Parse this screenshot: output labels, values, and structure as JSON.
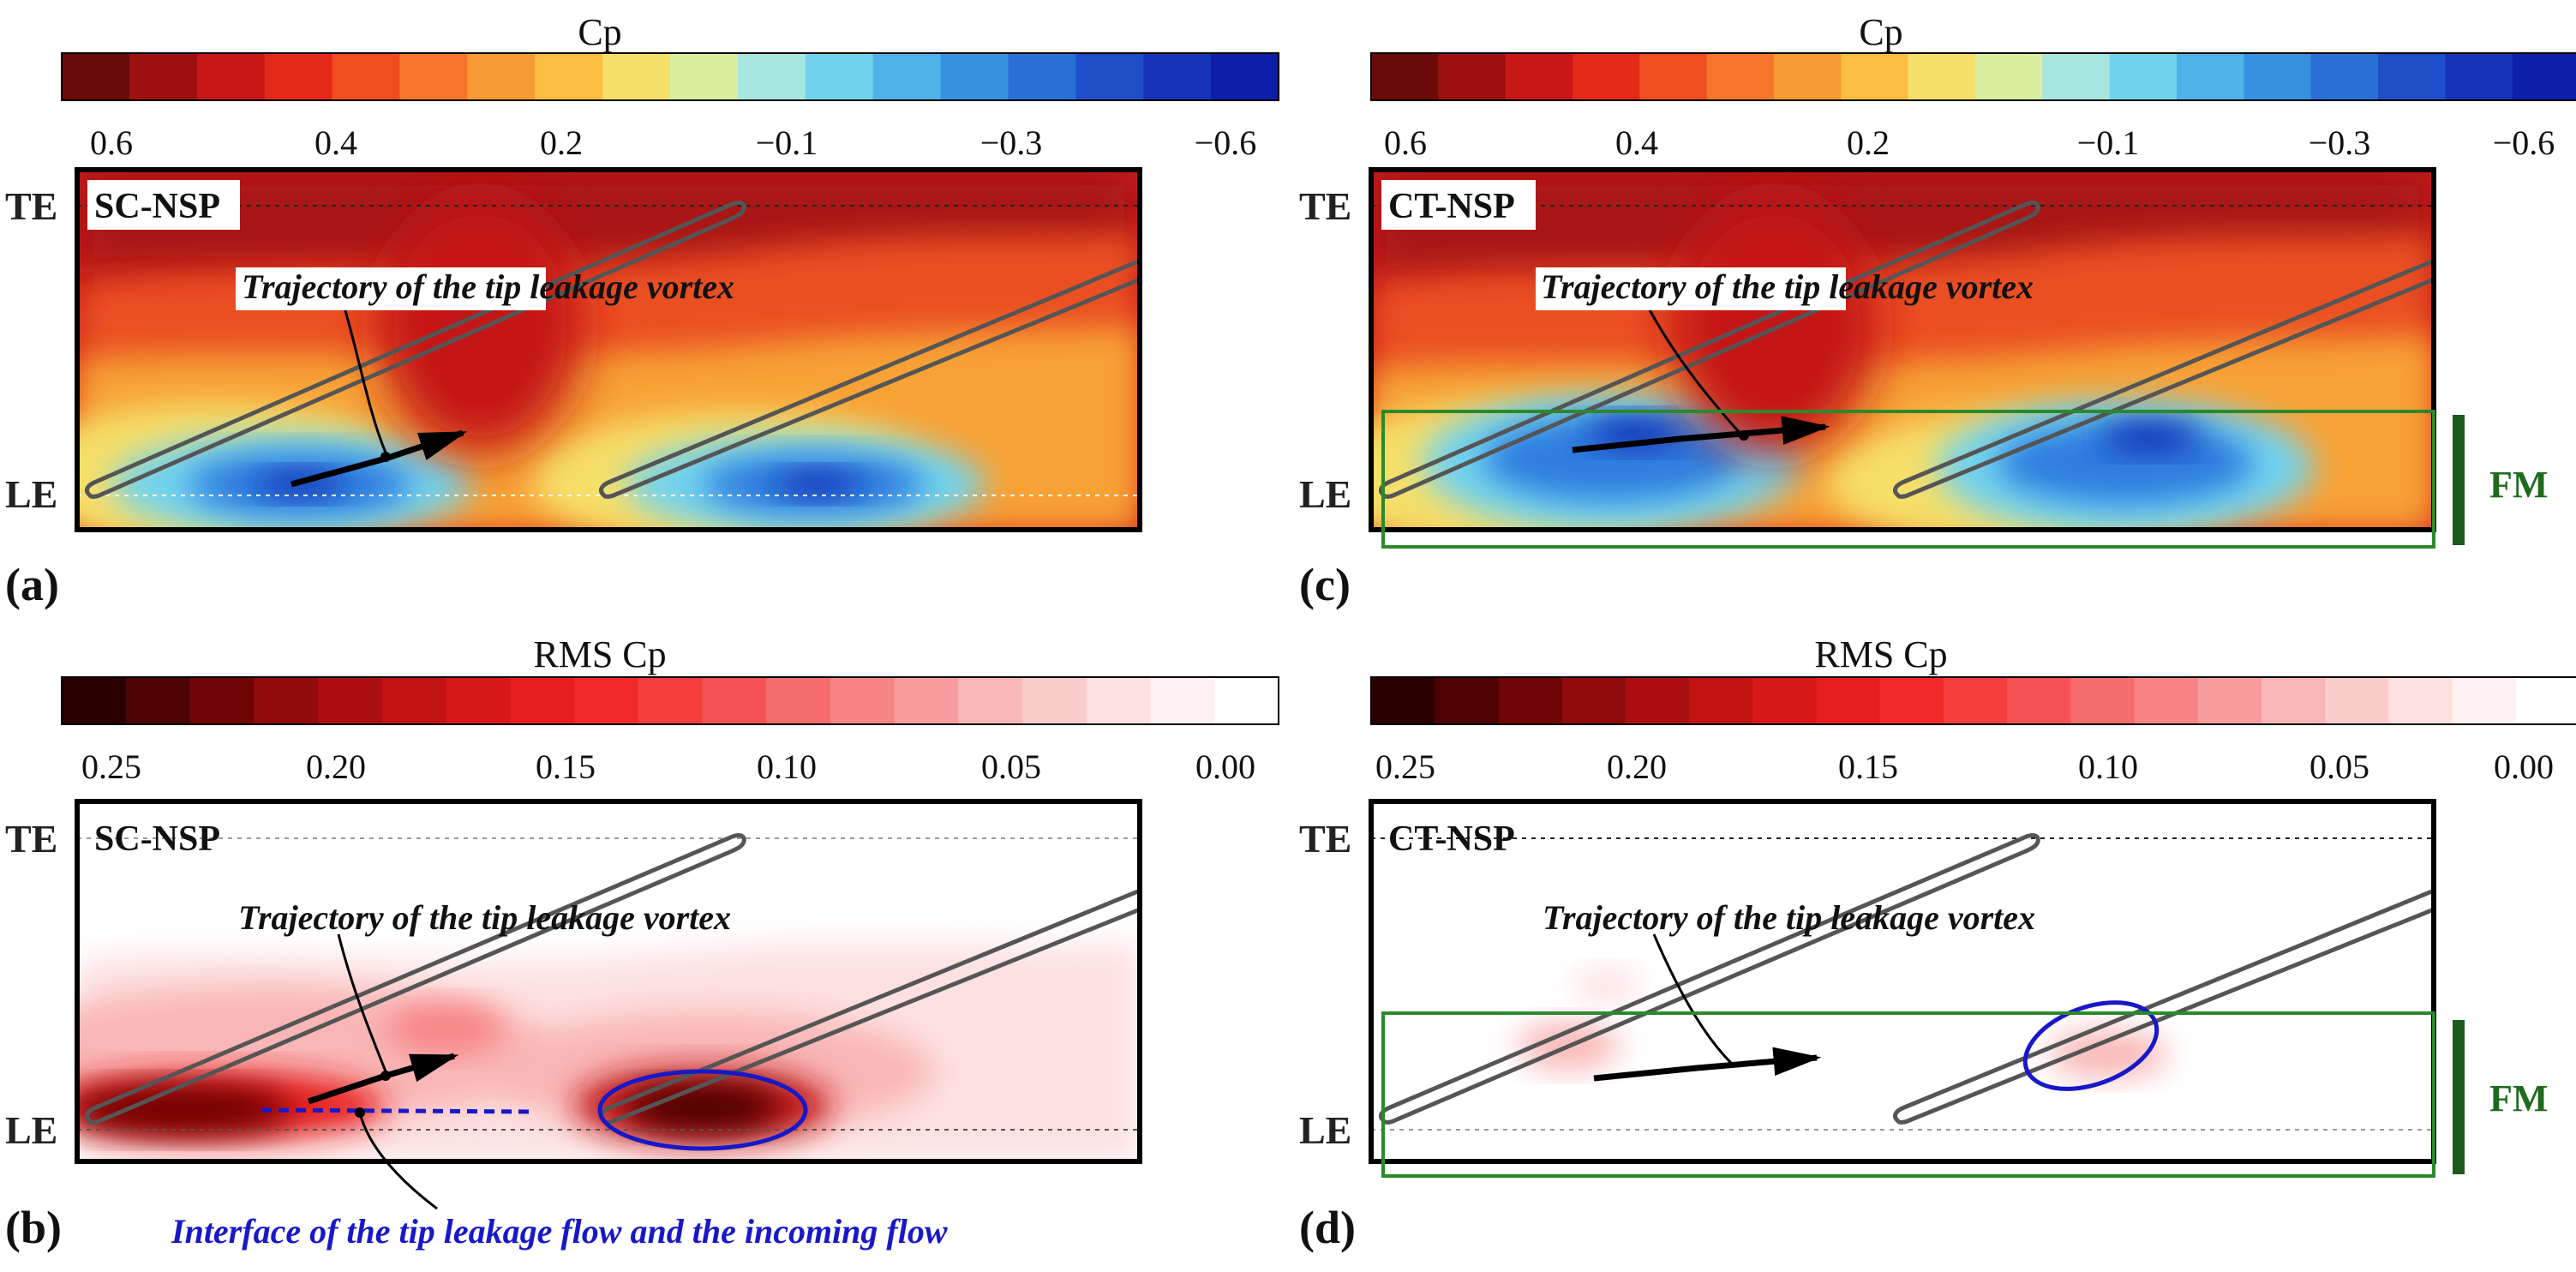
{
  "figure": {
    "cp_colorbar": {
      "title": "Cp",
      "colors": [
        "#6b0a0a",
        "#9c1010",
        "#c81717",
        "#e32a19",
        "#f04e20",
        "#f5762a",
        "#f89a33",
        "#fbbd42",
        "#f6df69",
        "#d9ee9e",
        "#a8e6e0",
        "#72d3ee",
        "#4fb3ea",
        "#3790e0",
        "#2a6fd6",
        "#1f4fc8",
        "#1634b7",
        "#0d1ea8"
      ],
      "ticks": [
        "0.6",
        "0.4",
        "0.2",
        "−0.1",
        "−0.3",
        "−0.6"
      ]
    },
    "rms_colorbar": {
      "title": "RMS Cp",
      "colors": [
        "#2a0000",
        "#4b0303",
        "#6e0606",
        "#8f0a0a",
        "#ab0f0f",
        "#c21313",
        "#d61818",
        "#e71e1e",
        "#f22a2a",
        "#f43d3d",
        "#f55353",
        "#f66b6b",
        "#f78484",
        "#f89d9d",
        "#f9b6b6",
        "#fbcccc",
        "#fde1e1",
        "#fff1f1",
        "#ffffff"
      ],
      "ticks": [
        "0.25",
        "0.20",
        "0.15",
        "0.10",
        "0.05",
        "0.00"
      ]
    },
    "panels": {
      "a": {
        "label": "(a)",
        "tag": "SC-NSP",
        "te": "TE",
        "le": "LE",
        "trajectory": "Trajectory of the tip leakage vortex"
      },
      "b": {
        "label": "(b)",
        "tag": "SC-NSP",
        "te": "TE",
        "le": "LE",
        "trajectory": "Trajectory of the tip leakage vortex",
        "interface": "Interface of the tip leakage flow and the incoming flow"
      },
      "c": {
        "label": "(c)",
        "tag": "CT-NSP",
        "te": "TE",
        "le": "LE",
        "trajectory": "Trajectory of the tip leakage vortex",
        "fm": "FM"
      },
      "d": {
        "label": "(d)",
        "tag": "CT-NSP",
        "te": "TE",
        "le": "LE",
        "trajectory": "Trajectory of the tip leakage vortex",
        "fm": "FM"
      }
    }
  }
}
